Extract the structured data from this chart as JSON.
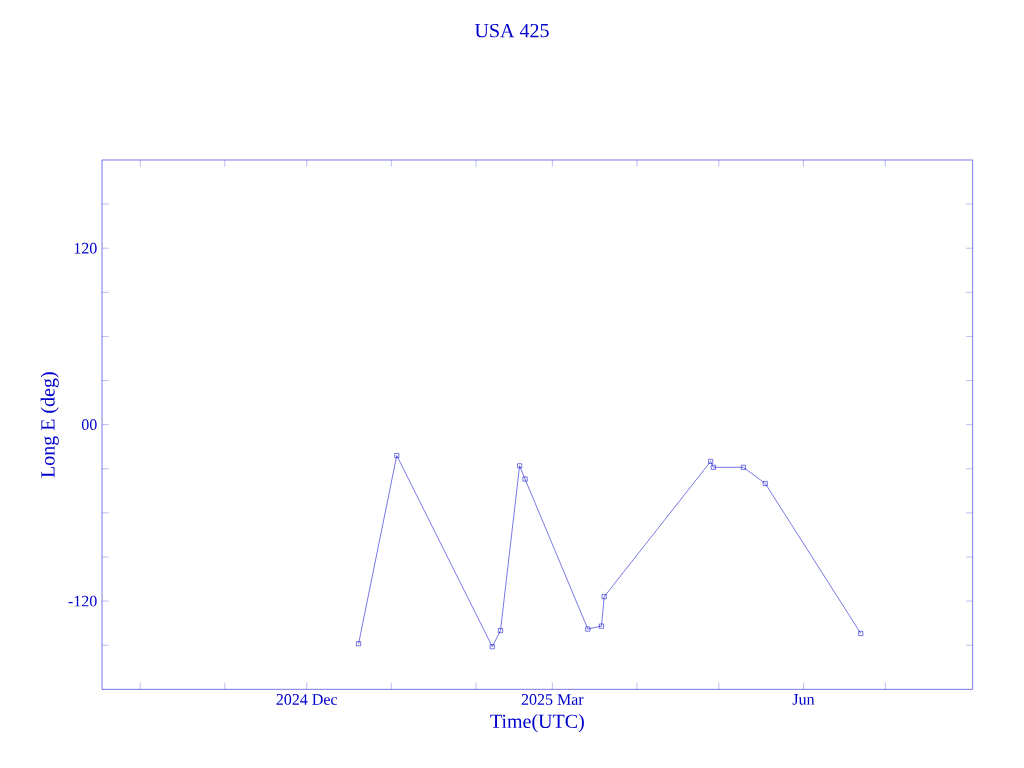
{
  "chart_data": {
    "type": "line",
    "title": "USA 425",
    "xlabel": "Time(UTC)",
    "ylabel": "Long E (deg)",
    "x": [
      "2024-12-20",
      "2025-01-03",
      "2025-02-07",
      "2025-02-10",
      "2025-02-17",
      "2025-02-19",
      "2025-03-14",
      "2025-03-19",
      "2025-03-20",
      "2025-04-28",
      "2025-04-29",
      "2025-05-10",
      "2025-05-18",
      "2025-06-22"
    ],
    "series": [
      {
        "color": "#0000cc",
        "values": [
          -149,
          -21,
          -151,
          -140,
          -28,
          -37,
          -139,
          -137,
          -117,
          -25,
          -29,
          -29,
          -40,
          -142
        ]
      }
    ],
    "xlim": [
      "2024-09-17",
      "2025-08-02"
    ],
    "xticks": [
      {
        "value": "2024-10-01",
        "label": null
      },
      {
        "value": "2024-11-01",
        "label": null
      },
      {
        "value": "2024-12-01",
        "label": "2024 Dec"
      },
      {
        "value": "2025-01-01",
        "label": null
      },
      {
        "value": "2025-02-01",
        "label": null
      },
      {
        "value": "2025-03-01",
        "label": "2025 Mar"
      },
      {
        "value": "2025-04-01",
        "label": null
      },
      {
        "value": "2025-05-01",
        "label": null
      },
      {
        "value": "2025-06-01",
        "label": "Jun"
      },
      {
        "value": "2025-07-01",
        "label": null
      }
    ],
    "ylim": [
      -180,
      180
    ],
    "yticks": [
      {
        "value": -150,
        "label": null
      },
      -120,
      {
        "value": -90,
        "label": null
      },
      {
        "value": -60,
        "label": null
      },
      {
        "value": -30,
        "label": null
      },
      {
        "value": 0,
        "label": "00"
      },
      {
        "value": 30,
        "label": null
      },
      {
        "value": 60,
        "label": null
      },
      {
        "value": 90,
        "label": null
      },
      120,
      {
        "value": 150,
        "label": null
      }
    ],
    "marker": "square",
    "line_style": "solid"
  }
}
